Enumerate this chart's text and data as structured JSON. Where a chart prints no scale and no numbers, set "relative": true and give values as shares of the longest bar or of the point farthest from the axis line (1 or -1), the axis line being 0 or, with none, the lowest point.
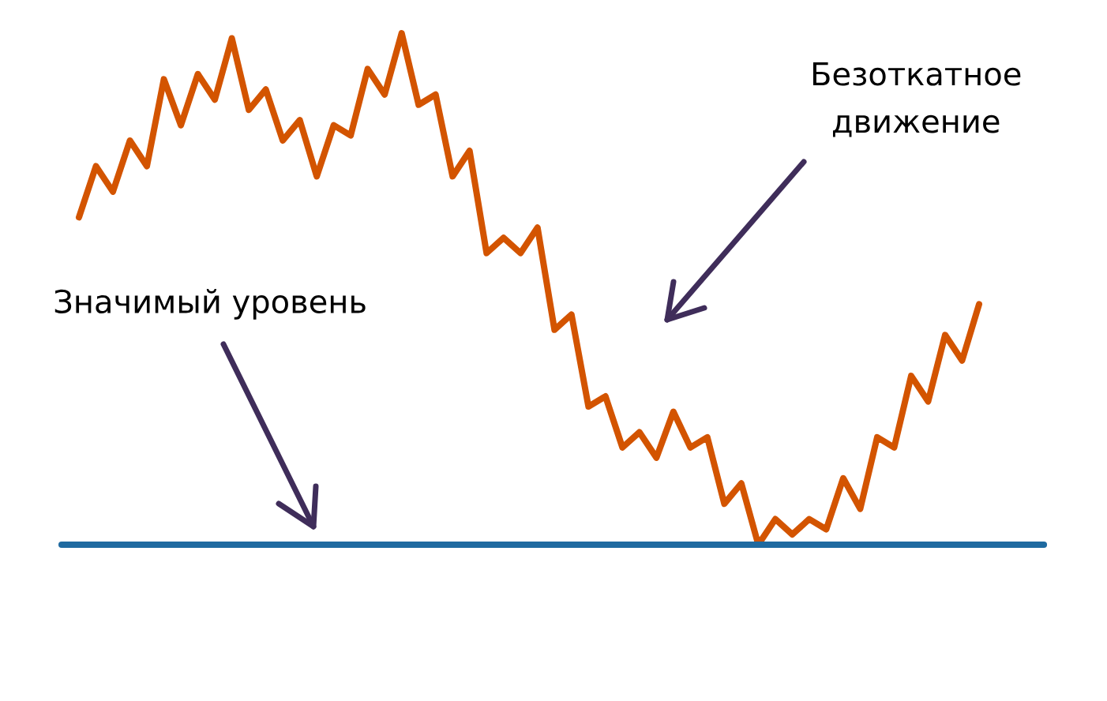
{
  "chart_data": {
    "type": "line",
    "relative": true,
    "color": "#d35400",
    "categories": [
      null,
      null,
      null,
      null,
      null,
      null,
      null,
      null,
      null,
      null,
      null,
      null,
      null,
      null,
      null,
      null,
      null,
      null,
      null,
      null,
      null,
      null,
      null,
      null,
      null,
      null,
      null,
      null,
      null,
      null,
      null,
      null,
      null,
      null,
      null,
      null,
      null,
      null,
      null,
      null,
      null,
      null,
      null,
      null,
      null,
      null,
      null,
      null,
      null,
      null,
      null,
      null,
      null,
      null
    ],
    "values": [
      0.64,
      0.74,
      0.69,
      0.79,
      0.74,
      0.91,
      0.82,
      0.92,
      0.87,
      0.99,
      0.85,
      0.89,
      0.79,
      0.83,
      0.72,
      0.82,
      0.8,
      0.93,
      0.88,
      1,
      0.86,
      0.88,
      0.72,
      0.77,
      0.57,
      0.6,
      0.57,
      0.62,
      0.42,
      0.45,
      0.27,
      0.29,
      0.19,
      0.22,
      0.17,
      0.26,
      0.19,
      0.21,
      0.08,
      0.12,
      0,
      0.05,
      0.02,
      0.05,
      0.03,
      0.13,
      0.07,
      0.21,
      0.19,
      0.33,
      0.28,
      0.41,
      0.36,
      0.47
    ],
    "ref_lines": [
      {
        "axis": "y",
        "value": 0,
        "color": "#1f6aa0"
      }
    ],
    "annotations": [
      "Значимый уровень",
      "Безоткатное движение"
    ]
  }
}
